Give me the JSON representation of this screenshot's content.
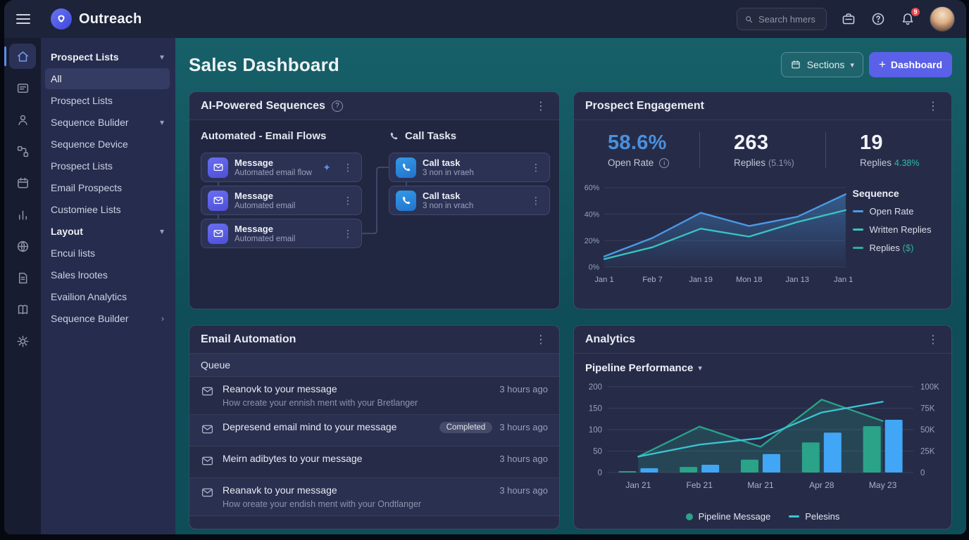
{
  "theme": {
    "bg_topbar": "#1d2338",
    "bg_rail": "#171c30",
    "bg_sidebar": "#262c4e",
    "bg_main_top": "#176069",
    "bg_main": "#0f4d58",
    "bg_card": "#262c48",
    "bg_card_deep": "#212741",
    "bg_node": "#2c3254",
    "border_node": "#41486e",
    "accent_indigo": "#5a60e8",
    "accent_blue": "#4a90dd",
    "badge_red": "#e8474f"
  },
  "topbar": {
    "app_name": "Outreach",
    "search_placeholder": "Search hmers",
    "notification_count": "9"
  },
  "icon_rail": [
    {
      "name": "home",
      "active": true
    },
    {
      "name": "inbox-card",
      "active": false
    },
    {
      "name": "person",
      "active": false
    },
    {
      "name": "flow",
      "active": false
    },
    {
      "name": "calendar",
      "active": false
    },
    {
      "name": "bar-chart",
      "active": false
    },
    {
      "name": "globe",
      "active": false
    },
    {
      "name": "document",
      "active": false
    },
    {
      "name": "book",
      "active": false
    },
    {
      "name": "gear",
      "active": false
    }
  ],
  "sidebar": {
    "items": [
      {
        "label": "Prospect Lists",
        "header": true,
        "chevron": "down"
      },
      {
        "label": "All",
        "selected": true
      },
      {
        "label": "Prospect Lists"
      },
      {
        "label": "Sequence Bulider",
        "chevron": "down"
      },
      {
        "label": "Sequence Device"
      },
      {
        "label": "Prospect Lists"
      },
      {
        "label": "Email Prospects"
      },
      {
        "label": "Customiee Lists"
      },
      {
        "label": "Layout",
        "header": true,
        "chevron": "down"
      },
      {
        "label": "Encui lists"
      },
      {
        "label": "Sales lrootes"
      },
      {
        "label": "Evailion Analytics"
      },
      {
        "label": "Sequence Builder",
        "chevron": "right"
      }
    ]
  },
  "page": {
    "title": "Sales Dashboard",
    "sections_label": "Sections",
    "add_dashboard_label": "Dashboard",
    "plus_icon": "+"
  },
  "ai_sequences": {
    "title": "AI-Powered Sequences",
    "info_icon": "?",
    "email_column_title": "Automated - Email Flows",
    "call_column_title": "Call Tasks",
    "email_nodes": [
      {
        "title": "Message",
        "subtitle": "Automated email flow",
        "sparkle": true
      },
      {
        "title": "Message",
        "subtitle": "Automated email"
      },
      {
        "title": "Message",
        "subtitle": "Automated email"
      }
    ],
    "call_nodes": [
      {
        "title": "Call task",
        "subtitle": "3 non in vraeh"
      },
      {
        "title": "Call task",
        "subtitle": "3 non in vrach"
      }
    ]
  },
  "engagement": {
    "title": "Prospect Engagement",
    "stats": [
      {
        "value": "58.6%",
        "label": "Open Rate",
        "value_color": "#4a90dd",
        "has_info": true
      },
      {
        "value": "263",
        "label": "Replies",
        "suffix": "(5.1%)",
        "suffix_color": "#8f95ad"
      },
      {
        "value": "19",
        "label": "Replies",
        "suffix": "4.38%",
        "suffix_color": "#2fbba5"
      }
    ],
    "legend_title": "Sequence",
    "legend": [
      {
        "label": "Open Rate",
        "color": "#4a9be8"
      },
      {
        "label": "Written Replies",
        "color": "#39c4c0"
      },
      {
        "label": "Replies",
        "suffix": "($)",
        "color": "#2fae9d",
        "suffix_color": "#2fae9d"
      }
    ]
  },
  "automation": {
    "title": "Email Automation",
    "queue_label": "Queue",
    "rows": [
      {
        "title": "Reanovk to your message",
        "subtitle": "How create your ennish ment with your Bretlanger",
        "time": "3 hours ago"
      },
      {
        "title": "Depresend email mind to your message",
        "badge": "Completed",
        "time": "3 hours ago"
      },
      {
        "title": "Meirn adibytes to your message",
        "time": "3 hours ago"
      },
      {
        "title": "Reanavk to your message",
        "subtitle": "How oreate your endish ment with your Ondtlanger",
        "time": "3 hours ago"
      }
    ]
  },
  "analytics": {
    "title": "Analytics",
    "subtitle": "Pipeline Performance",
    "legend": [
      {
        "label": "Pipeline Message",
        "marker": "dot",
        "color": "#2aa389"
      },
      {
        "label": "Pelesins",
        "marker": "line",
        "color": "#3cc4d4"
      }
    ]
  },
  "chart_data": [
    {
      "id": "prospect-engagement",
      "type": "line",
      "title": "Prospect Engagement",
      "x": [
        "Jan 1",
        "Feb 7",
        "Jan 19",
        "Mon 18",
        "Jan 13",
        "Jan 19"
      ],
      "series": [
        {
          "name": "Open Rate",
          "color": "#4a9be8",
          "values": [
            8,
            22,
            41,
            31,
            38,
            55
          ]
        },
        {
          "name": "Written Replies",
          "color": "#39c4c0",
          "values": [
            6,
            15,
            29,
            23,
            34,
            43
          ]
        }
      ],
      "ylim": [
        0,
        60
      ],
      "yticks": [
        {
          "v": 0,
          "label": "0%"
        },
        {
          "v": 20,
          "label": "20%"
        },
        {
          "v": 40,
          "label": "40%"
        },
        {
          "v": 60,
          "label": "60%"
        }
      ],
      "grid": true,
      "legend_position": "right"
    },
    {
      "id": "pipeline-performance",
      "type": "bar+line",
      "title": "Pipeline Performance",
      "x": [
        "Jan 21",
        "Feb 21",
        "Mar 21",
        "Apr 28",
        "May 23"
      ],
      "bar_series": [
        {
          "name": "Pipeline Message",
          "color": "#2aa389",
          "values": [
            3,
            13,
            30,
            70,
            108
          ]
        },
        {
          "name": null,
          "color": "#41a6f5",
          "values": [
            10,
            18,
            43,
            93,
            123
          ]
        }
      ],
      "line_series": [
        {
          "name": null,
          "color": "#2aa389",
          "area": true,
          "values": [
            37,
            107,
            60,
            170,
            120
          ]
        },
        {
          "name": "Pelesins",
          "color": "#3cc4d4",
          "area": false,
          "values": [
            37,
            65,
            80,
            140,
            165
          ]
        }
      ],
      "ylim_left": [
        0,
        200
      ],
      "yticks_left": [
        {
          "v": 0,
          "label": "0"
        },
        {
          "v": 50,
          "label": "50"
        },
        {
          "v": 100,
          "label": "100"
        },
        {
          "v": 150,
          "label": "150"
        },
        {
          "v": 200,
          "label": "200"
        }
      ],
      "yticks_right": [
        {
          "v": 0,
          "label": "0"
        },
        {
          "v": 50,
          "label": "25K"
        },
        {
          "v": 100,
          "label": "50K"
        },
        {
          "v": 150,
          "label": "75K"
        },
        {
          "v": 200,
          "label": "100K"
        }
      ],
      "grid": true,
      "legend_position": "bottom"
    }
  ]
}
